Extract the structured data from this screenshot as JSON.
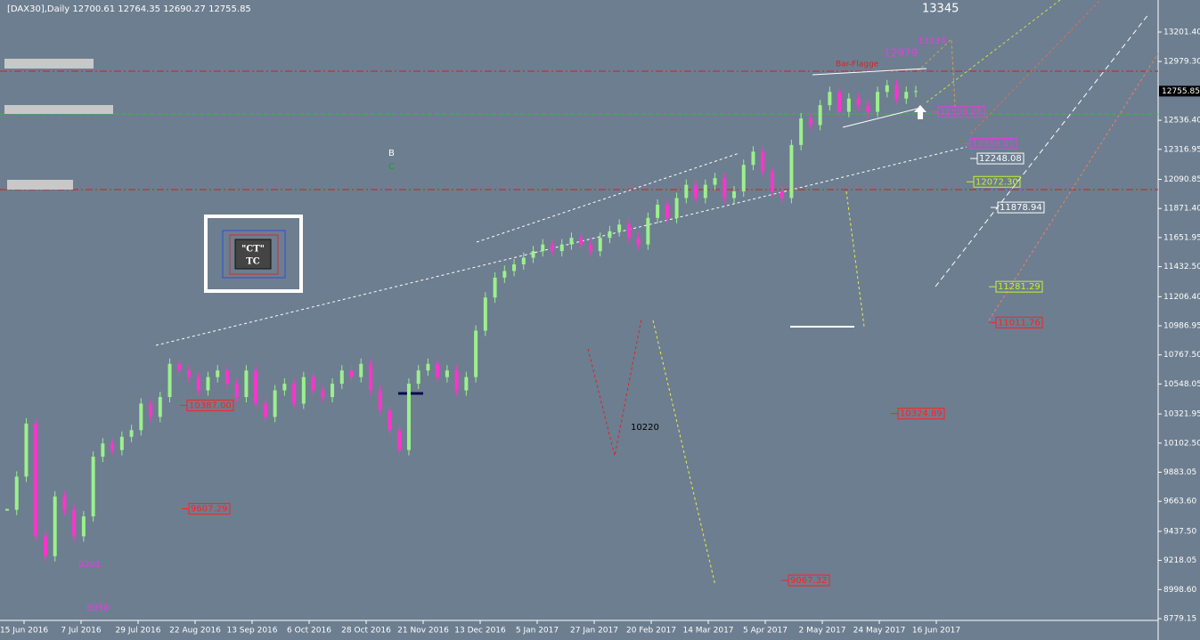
{
  "header": "[DAX30],Daily  12700.61 12764.35 12690.27 12755.85",
  "price_axis": {
    "ylim": [
      8779.15,
      13201.4
    ],
    "ticks": [
      {
        "value": 13201.4,
        "label": "13201.40"
      },
      {
        "value": 12979.3,
        "label": "12979.30"
      },
      {
        "value": 12536.4,
        "label": "12536.40"
      },
      {
        "value": 12316.95,
        "label": "12316.95"
      },
      {
        "value": 12090.85,
        "label": "12090.85"
      },
      {
        "value": 11871.4,
        "label": "11871.40"
      },
      {
        "value": 11651.95,
        "label": "11651.95"
      },
      {
        "value": 11432.5,
        "label": "11432.50"
      },
      {
        "value": 11206.4,
        "label": "11206.40"
      },
      {
        "value": 10986.95,
        "label": "10986.95"
      },
      {
        "value": 10767.5,
        "label": "10767.50"
      },
      {
        "value": 10548.05,
        "label": "10548.05"
      },
      {
        "value": 10321.95,
        "label": "10321.95"
      },
      {
        "value": 10102.5,
        "label": "10102.50"
      },
      {
        "value": 9883.05,
        "label": "9883.05"
      },
      {
        "value": 9663.6,
        "label": "9663.60"
      },
      {
        "value": 9437.5,
        "label": "9437.50"
      },
      {
        "value": 9218.05,
        "label": "9218.05"
      },
      {
        "value": 8998.6,
        "label": "8998.60"
      },
      {
        "value": 8779.15,
        "label": "8779.15"
      }
    ],
    "current": {
      "value": 12755.85,
      "label": "12755.85"
    }
  },
  "date_axis": [
    "15 Jun 2016",
    "7 Jul 2016",
    "29 Jul 2016",
    "22 Aug 2016",
    "13 Sep 2016",
    "6 Oct 2016",
    "28 Oct 2016",
    "21 Nov 2016",
    "13 Dec 2016",
    "5 Jan 2017",
    "27 Jan 2017",
    "20 Feb 2017",
    "14 Mar 2017",
    "5 Apr 2017",
    "2 May 2017",
    "24 May 2017",
    "16 Jun 2017"
  ],
  "candles": {
    "up_color": "#9cf08c",
    "down_color": "#ff33cc",
    "closes": [
      9600,
      9850,
      10250,
      9400,
      9250,
      9700,
      9600,
      9400,
      9550,
      10000,
      10100,
      10050,
      10150,
      10200,
      10400,
      10300,
      10450,
      10700,
      10650,
      10600,
      10500,
      10600,
      10650,
      10550,
      10450,
      10650,
      10400,
      10300,
      10500,
      10550,
      10400,
      10600,
      10500,
      10450,
      10550,
      10650,
      10600,
      10700,
      10500,
      10350,
      10200,
      10050,
      10550,
      10650,
      10700,
      10600,
      10650,
      10500,
      10600,
      10950,
      11200,
      11350,
      11400,
      11450,
      11500,
      11550,
      11600,
      11550,
      11600,
      11650,
      11600,
      11550,
      11650,
      11700,
      11750,
      11650,
      11600,
      11800,
      11900,
      11800,
      11950,
      12050,
      11950,
      12050,
      12100,
      11950,
      12000,
      12200,
      12300,
      12150,
      12000,
      11950,
      12350,
      12550,
      12500,
      12650,
      12750,
      12600,
      12700,
      12650,
      12600,
      12750,
      12800,
      12700,
      12750,
      12755.85
    ]
  },
  "price_labels": [
    {
      "value": 12599.05,
      "label": "12599.05",
      "color": "#e040e0"
    },
    {
      "value": 12359.01,
      "label": "12359.01",
      "color": "#e040e0"
    },
    {
      "value": 12248.08,
      "label": "12248.08",
      "color": "#ffffff"
    },
    {
      "value": 12072.3,
      "label": "12072.30",
      "color": "#c8f030"
    },
    {
      "value": 11878.94,
      "label": "11878.94",
      "color": "#ffffff"
    },
    {
      "value": 11281.29,
      "label": "11281.29",
      "color": "#c8f030"
    },
    {
      "value": 11011.76,
      "label": "11011.76",
      "color": "#ff2020"
    },
    {
      "value": 10387.0,
      "label": "10387.00",
      "color": "#ff2020"
    },
    {
      "value": 10324.89,
      "label": "10324.89",
      "color": "#ff2020"
    },
    {
      "value": 9607.29,
      "label": "9607.29",
      "color": "#ff2020"
    },
    {
      "value": 9067.32,
      "label": "9067.32",
      "color": "#ff2020"
    }
  ],
  "annotations": [
    "13345",
    "13134",
    "12979",
    "Bar-Flagge",
    "B",
    "C",
    "10220",
    "9201",
    "8956",
    "\"CT\"",
    "TC"
  ]
}
